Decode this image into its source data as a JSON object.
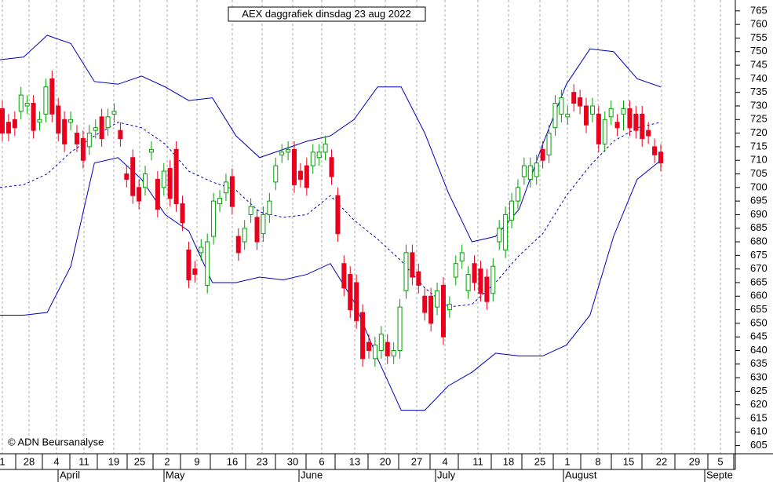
{
  "chart_data": {
    "type": "candlestick",
    "title": "AEX daggrafiek dinsdag 23 aug 2022",
    "copyright": "© ADN Beursanalyse",
    "open": [
      729,
      724,
      725,
      728,
      730,
      731,
      724,
      727,
      740,
      730,
      725,
      724,
      720,
      718,
      715,
      721,
      726,
      722,
      727,
      721,
      705,
      711,
      700,
      700,
      713,
      703,
      700,
      707,
      714,
      694,
      677,
      670,
      676,
      664,
      682,
      694,
      698,
      704,
      682,
      680,
      690,
      689,
      683,
      690,
      702,
      712,
      713,
      714,
      706,
      708,
      708,
      711,
      713,
      711,
      697,
      672,
      668,
      665,
      654,
      643,
      637,
      640,
      643,
      638,
      640,
      662,
      676,
      669,
      660,
      660,
      656,
      664,
      655,
      667,
      673,
      662,
      672,
      670,
      667,
      661,
      680,
      677,
      688,
      695,
      704,
      703,
      704,
      714,
      712,
      722,
      727,
      726,
      735,
      733,
      730,
      727,
      727,
      716,
      726,
      724,
      727,
      729,
      727,
      727,
      721,
      715,
      713
    ],
    "high": [
      732,
      727,
      728,
      737,
      734,
      734,
      728,
      740,
      743,
      733,
      728,
      728,
      723,
      721,
      723,
      725,
      729,
      729,
      731,
      724,
      708,
      714,
      703,
      708,
      717,
      706,
      709,
      710,
      717,
      697,
      680,
      673,
      681,
      683,
      698,
      699,
      705,
      707,
      685,
      688,
      696,
      692,
      693,
      698,
      711,
      716,
      717,
      717,
      709,
      711,
      716,
      716,
      719,
      714,
      700,
      675,
      671,
      668,
      657,
      646,
      645,
      649,
      646,
      643,
      659,
      679,
      679,
      672,
      663,
      663,
      665,
      667,
      660,
      675,
      679,
      671,
      675,
      673,
      670,
      674,
      688,
      693,
      698,
      703,
      711,
      711,
      712,
      717,
      723,
      734,
      736,
      730,
      738,
      736,
      733,
      733,
      730,
      728,
      732,
      727,
      732,
      732,
      730,
      730,
      724,
      718,
      716
    ],
    "low": [
      717,
      717,
      719,
      725,
      727,
      718,
      721,
      724,
      724,
      717,
      713,
      721,
      713,
      707,
      712,
      718,
      715,
      719,
      724,
      715,
      700,
      694,
      692,
      697,
      710,
      689,
      697,
      693,
      691,
      684,
      663,
      665,
      673,
      661,
      679,
      691,
      695,
      690,
      673,
      677,
      687,
      677,
      680,
      687,
      699,
      709,
      710,
      698,
      700,
      697,
      705,
      708,
      710,
      701,
      680,
      660,
      652,
      648,
      634,
      637,
      634,
      637,
      635,
      635,
      637,
      659,
      664,
      661,
      651,
      647,
      653,
      642,
      652,
      664,
      670,
      659,
      662,
      658,
      655,
      658,
      677,
      674,
      685,
      692,
      701,
      700,
      701,
      707,
      709,
      719,
      724,
      723,
      728,
      727,
      720,
      724,
      713,
      713,
      723,
      719,
      721,
      719,
      718,
      715,
      716,
      709,
      706
    ],
    "close": [
      720,
      720,
      722,
      734,
      731,
      721,
      725,
      737,
      727,
      720,
      716,
      725,
      716,
      710,
      720,
      722,
      718,
      726,
      728,
      718,
      703,
      697,
      695,
      705,
      714,
      692,
      706,
      696,
      694,
      687,
      666,
      668,
      678,
      680,
      695,
      696,
      702,
      693,
      676,
      685,
      693,
      680,
      690,
      695,
      708,
      713,
      714,
      701,
      703,
      700,
      713,
      713,
      716,
      704,
      683,
      663,
      655,
      651,
      637,
      640,
      642,
      646,
      638,
      640,
      656,
      676,
      667,
      664,
      654,
      650,
      662,
      645,
      657,
      672,
      676,
      668,
      665,
      661,
      658,
      671,
      685,
      690,
      695,
      700,
      708,
      708,
      709,
      710,
      720,
      731,
      733,
      727,
      731,
      730,
      723,
      730,
      716,
      725,
      729,
      722,
      729,
      722,
      721,
      718,
      719,
      712,
      709
    ],
    "up_color": "#00a000",
    "down_color": "#e8001c",
    "bands": [
      {
        "color": "#0000c0",
        "dashed": false,
        "values": [
          747,
          748,
          756,
          753,
          739,
          738,
          741,
          737,
          732,
          733,
          719,
          711,
          714,
          717,
          719,
          725,
          737,
          737,
          720,
          698,
          680,
          682,
          692,
          716,
          738,
          751,
          750,
          740,
          737
        ]
      },
      {
        "color": "#0000c0",
        "dashed": true,
        "values": [
          700,
          701,
          705,
          713,
          719,
          724,
          722,
          716,
          706,
          702,
          699,
          691,
          689,
          690,
          697,
          688,
          681,
          673,
          663,
          656,
          657,
          665,
          675,
          683,
          697,
          708,
          717,
          722,
          724
        ]
      },
      {
        "color": "#0000c0",
        "dashed": false,
        "values": [
          653,
          653,
          654,
          671,
          709,
          711,
          703,
          690,
          684,
          665,
          665,
          667,
          666,
          668,
          672,
          658,
          637,
          618,
          618,
          627,
          632,
          639,
          638,
          638,
          642,
          653,
          682,
          703,
          710
        ]
      }
    ],
    "week_labels": [
      "1",
      "28",
      "4",
      "11",
      "19",
      "25",
      "2",
      "9",
      "16",
      "23",
      "30",
      "6",
      "13",
      "20",
      "27",
      "4",
      "11",
      "18",
      "25",
      "1",
      "8",
      "15",
      "22",
      "29",
      "5"
    ],
    "month_labels": [
      "April",
      "May",
      "June",
      "July",
      "August",
      "Septe"
    ],
    "ylim": [
      602,
      769
    ],
    "yticks": [
      605,
      610,
      615,
      620,
      625,
      630,
      635,
      640,
      645,
      650,
      655,
      660,
      665,
      670,
      675,
      680,
      685,
      690,
      695,
      700,
      705,
      710,
      715,
      720,
      725,
      730,
      735,
      740,
      745,
      750,
      755,
      760,
      765
    ]
  }
}
